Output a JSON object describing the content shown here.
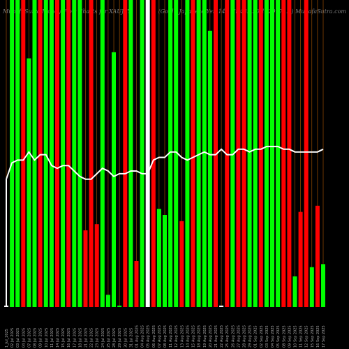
{
  "header": {
    "left": "MunafaSutra Money Flow Charts for XAUJPY",
    "right": "(Gold / Japanese Yen 142 Hr 432.50  1429771.0) MunafaSutra.com"
  },
  "chart_data": {
    "type": "bar",
    "title": "MunafaSutra Money Flow Charts for XAUJPY",
    "grid": "vertical lines",
    "ylim": [
      0,
      100
    ],
    "price_ylim": [
      0,
      100
    ],
    "categories": [
      "1_Jul_2025",
      "02 Jul 2025",
      "03 Jul 2025",
      "04 Jul 2025",
      "07 Jul 2025",
      "08 Jul 2025",
      "09 Jul 2025",
      "10 Jul 2025",
      "11 Jul 2025",
      "14 Jul 2025",
      "15 Jul 2025",
      "16 Jul 2025",
      "17 Jul 2025",
      "18 Jul 2025",
      "21 Jul 2025",
      "22 Jul 2025",
      "23 Jul 2025",
      "24 Jul 2025",
      "25 Jul 2025",
      "28 Jul 2025",
      "29 Jul 2025",
      "30 Jul 2025",
      "31 Jul 2025",
      "01 Aug 2025",
      "04 Aug 2025",
      "05 Aug 2025",
      "06 Aug 2025",
      "07 Aug 2025",
      "08 Aug 2025",
      "11 Aug 2025",
      "12 Aug 2025",
      "13 Aug 2025",
      "14 Aug 2025",
      "15 Aug 2025",
      "18 Aug 2025",
      "19 Aug 2025",
      "20 Aug 2025",
      "21 Aug 2025",
      "22 Aug 2025",
      "25 Aug 2025",
      "26 Aug 2025",
      "27 Aug 2025",
      "28 Aug 2025",
      "29 Aug 2025",
      "01 Sep 2025",
      "02 Sep 2025",
      "03 Sep 2025",
      "04 Sep 2025",
      "05 Sep 2025",
      "08 Sep 2025",
      "09 Sep 2025",
      "10 Sep 2025",
      "11 Sep 2025",
      "12 Sep 2025",
      "15 Sep 2025",
      "16 Sep 2025",
      "17 Sep 2025"
    ],
    "series": [
      {
        "colors": [
          "white",
          "green",
          "green",
          "red",
          "green",
          "green",
          "red",
          "green",
          "green",
          "red",
          "green",
          "red",
          "green",
          "green",
          "red",
          "red",
          "red",
          "green",
          "green",
          "green",
          "green",
          "red",
          "green",
          "red",
          "green",
          "white",
          "red",
          "green",
          "green",
          "green",
          "green",
          "red",
          "green",
          "red",
          "green",
          "green",
          "green",
          "red",
          "white",
          "red",
          "green",
          "red",
          "red",
          "green",
          "green",
          "red",
          "green",
          "green",
          "green",
          "red",
          "red",
          "green",
          "red",
          "red",
          "green",
          "red",
          "green"
        ],
        "values": [
          0.5,
          100,
          100,
          100,
          81,
          100,
          100,
          100,
          100,
          100,
          100,
          100,
          100,
          100,
          25,
          100,
          27,
          100,
          4,
          83,
          0.5,
          100,
          100,
          15,
          100,
          100,
          100,
          32,
          30,
          100,
          100,
          28,
          100,
          100,
          100,
          100,
          90,
          100,
          0.5,
          100,
          100,
          100,
          100,
          100,
          100,
          100,
          100,
          100,
          100,
          100,
          100,
          10,
          31,
          100,
          13,
          33,
          14
        ]
      },
      {
        "type": "line",
        "values": [
          47,
          53,
          54,
          54,
          57,
          54,
          56,
          56,
          52,
          51,
          52,
          52,
          50,
          48,
          47,
          47,
          49,
          51,
          50,
          48,
          49,
          49,
          50,
          50,
          49,
          49,
          54,
          55,
          55,
          57,
          57,
          55,
          54,
          55,
          56,
          57,
          56,
          56,
          58,
          56,
          56,
          58,
          58,
          57,
          58,
          58,
          59,
          59,
          59,
          58,
          58,
          57,
          57,
          57,
          57,
          57,
          58
        ]
      }
    ],
    "xticklabels": [
      "1_Jul_2025",
      "02 Jul 2025",
      "03 Jul 2025",
      "04 Jul 2025",
      "07 Jul 2025",
      "08 Jul 2025",
      "09 Jul 2025",
      "10 Jul 2025",
      "11 Jul 2025",
      "14 Jul 2025",
      "15 Jul 2025",
      "16 Jul 2025",
      "17 Jul 2025",
      "18 Jul 2025",
      "21 Jul 2025",
      "22 Jul 2025",
      "23 Jul 2025",
      "24 Jul 2025",
      "25 Jul 2025",
      "28 Jul 2025",
      "29 Jul 2025",
      "30 Jul 2025",
      "31 Jul 2025",
      "01 Aug 2025",
      "04 Aug 2025",
      "05 Aug 2025",
      "06 Aug 2025",
      "07 Aug 2025",
      "08 Aug 2025",
      "11 Aug 2025",
      "12 Aug 2025",
      "13 Aug 2025",
      "14 Aug 2025",
      "15 Aug 2025",
      "18 Aug 2025",
      "19 Aug 2025",
      "20 Aug 2025",
      "21 Aug 2025",
      "22 Aug 2025",
      "25 Aug 2025",
      "26 Aug 2025",
      "27 Aug 2025",
      "28 Aug 2025",
      "29 Aug 2025",
      "01 Sep 2025",
      "02 Sep 2025",
      "03 Sep 2025",
      "04 Sep 2025",
      "05 Sep 2025",
      "08 Sep 2025",
      "09 Sep 2025",
      "10 Sep 2025",
      "11 Sep 2025",
      "12 Sep 2025",
      "15 Sep 2025",
      "16 Sep 2025",
      "17 Sep 2025"
    ],
    "colors": {
      "background": "#000000",
      "green": "#00ff00",
      "red": "#ff0000",
      "white": "#ffffff",
      "grid": "#b35900",
      "label": "#aaaaaa"
    }
  }
}
